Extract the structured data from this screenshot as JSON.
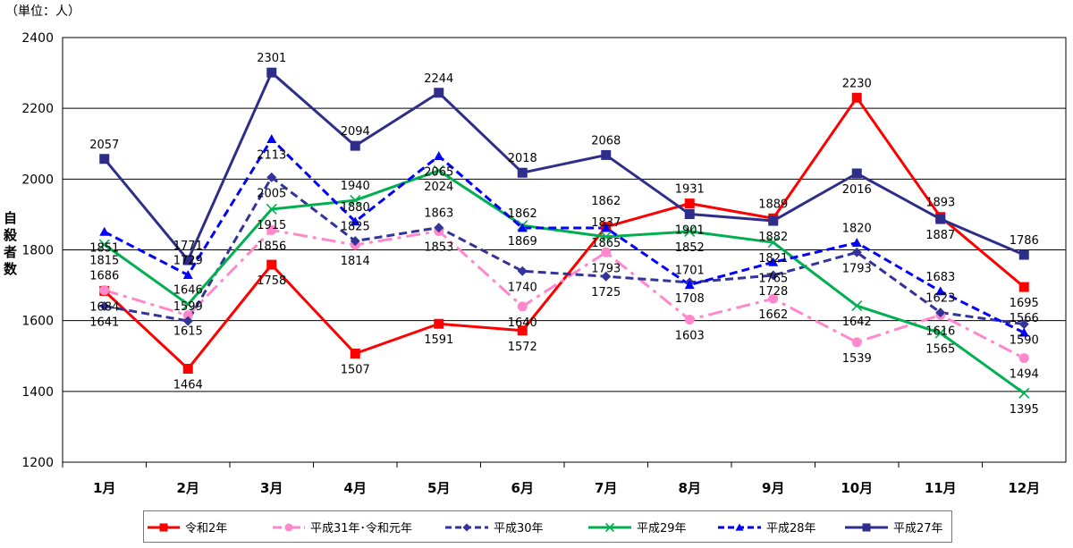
{
  "unit_note": "（単位：人）",
  "chart_data": {
    "type": "line",
    "ylabel": "自殺者数",
    "ylim": [
      1200,
      2400
    ],
    "yticks": [
      1200,
      1400,
      1600,
      1800,
      2000,
      2200,
      2400
    ],
    "grid": true,
    "legend_position": "bottom",
    "categories": [
      "1月",
      "2月",
      "3月",
      "4月",
      "5月",
      "6月",
      "7月",
      "8月",
      "9月",
      "10月",
      "11月",
      "12月"
    ],
    "series": [
      {
        "name": "令和2年",
        "color": "#ff0000",
        "style": "solid",
        "marker": "square",
        "values": [
          1684,
          1464,
          1758,
          1507,
          1591,
          1572,
          1865,
          1931,
          1889,
          2230,
          1893,
          1695
        ]
      },
      {
        "name": "平成31年･令和元年",
        "color": "#ff88cc",
        "style": "dashdot",
        "marker": "circle",
        "values": [
          1686,
          1615,
          1856,
          1814,
          1853,
          1640,
          1793,
          1603,
          1662,
          1539,
          1616,
          1494
        ]
      },
      {
        "name": "平成30年",
        "color": "#333399",
        "style": "dashed",
        "marker": "diamond",
        "values": [
          1641,
          1599,
          2005,
          1825,
          1863,
          1740,
          1725,
          1708,
          1728,
          1793,
          1623,
          1590
        ]
      },
      {
        "name": "平成29年",
        "color": "#00b050",
        "style": "solid",
        "marker": "x",
        "values": [
          1815,
          1646,
          1915,
          1940,
          2024,
          1869,
          1837,
          1852,
          1821,
          1642,
          1565,
          1395
        ]
      },
      {
        "name": "平成28年",
        "color": "#0000ff",
        "style": "dashed",
        "marker": "triangle",
        "values": [
          1851,
          1729,
          2113,
          1880,
          2065,
          1862,
          1862,
          1701,
          1765,
          1820,
          1683,
          1566
        ]
      },
      {
        "name": "平成27年",
        "color": "#2e2e8a",
        "style": "solid",
        "marker": "square",
        "values": [
          2057,
          1771,
          2301,
          2094,
          2244,
          2018,
          2068,
          1901,
          1882,
          2016,
          1887,
          1786
        ]
      }
    ]
  }
}
